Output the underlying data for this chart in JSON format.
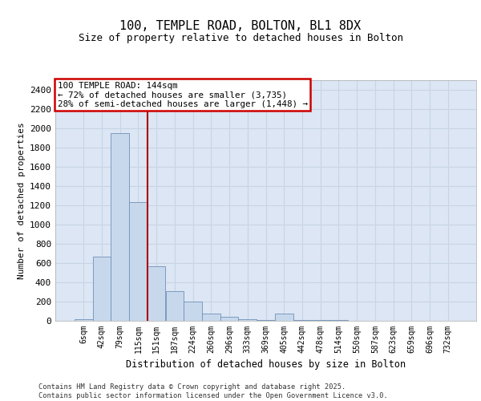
{
  "title_line1": "100, TEMPLE ROAD, BOLTON, BL1 8DX",
  "title_line2": "Size of property relative to detached houses in Bolton",
  "xlabel": "Distribution of detached houses by size in Bolton",
  "ylabel": "Number of detached properties",
  "footer_line1": "Contains HM Land Registry data © Crown copyright and database right 2025.",
  "footer_line2": "Contains public sector information licensed under the Open Government Licence v3.0.",
  "bar_color": "#c8d8ec",
  "bar_edge_color": "#7090b8",
  "grid_color": "#c8d4e4",
  "background_color": "#dce6f4",
  "vline_color": "#aa0000",
  "categories": [
    "6sqm",
    "42sqm",
    "79sqm",
    "115sqm",
    "151sqm",
    "187sqm",
    "224sqm",
    "260sqm",
    "296sqm",
    "333sqm",
    "369sqm",
    "405sqm",
    "442sqm",
    "478sqm",
    "514sqm",
    "550sqm",
    "587sqm",
    "623sqm",
    "659sqm",
    "696sqm",
    "732sqm"
  ],
  "values": [
    15,
    670,
    1950,
    1230,
    570,
    310,
    200,
    75,
    40,
    20,
    10,
    75,
    8,
    8,
    8,
    0,
    0,
    0,
    0,
    0,
    0
  ],
  "ylim": [
    0,
    2500
  ],
  "yticks": [
    0,
    200,
    400,
    600,
    800,
    1000,
    1200,
    1400,
    1600,
    1800,
    2000,
    2200,
    2400
  ],
  "vline_x": 3.5,
  "annotation_text_line1": "100 TEMPLE ROAD: 144sqm",
  "annotation_text_line2": "← 72% of detached houses are smaller (3,735)",
  "annotation_text_line3": "28% of semi-detached houses are larger (1,448) →"
}
